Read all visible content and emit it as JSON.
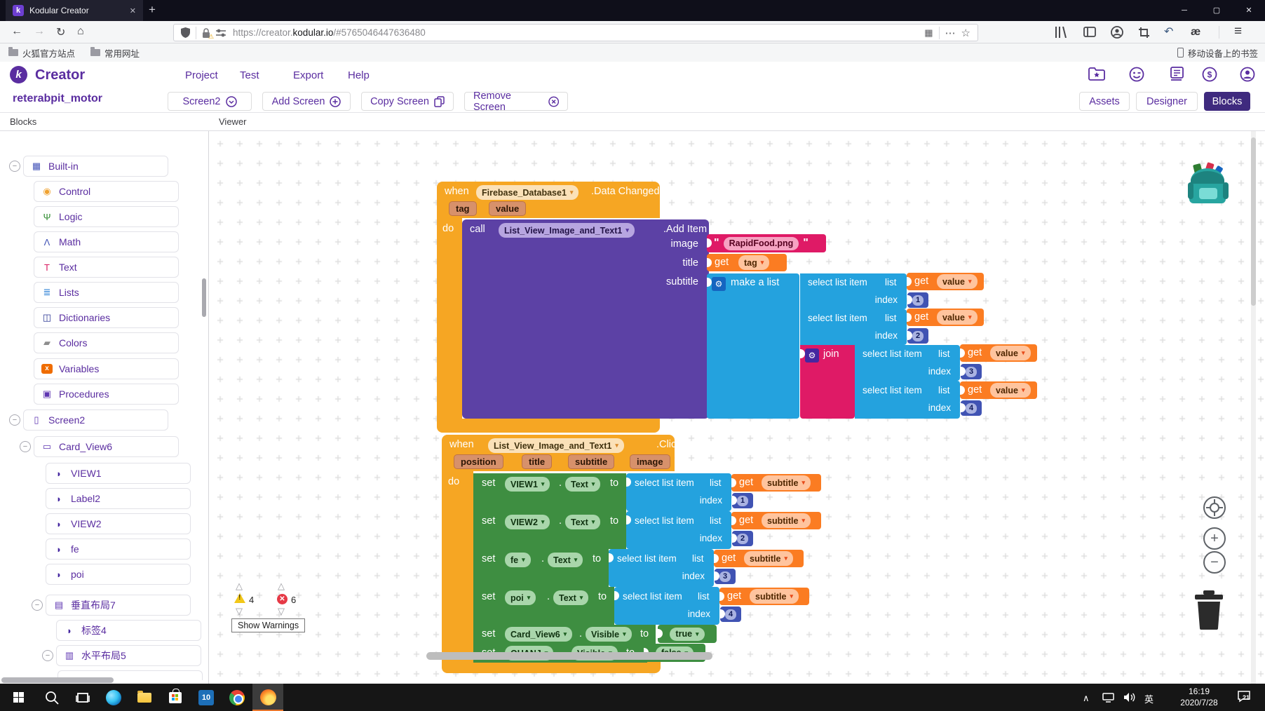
{
  "titlebar": {
    "tab_title": "Kodular Creator"
  },
  "browser": {
    "url_pre": "https://creator.",
    "url_domain": "kodular.io",
    "url_hash": "/#5765046447636480",
    "bookmarks": [
      {
        "label": "火狐官方站点"
      },
      {
        "label": "常用网址"
      }
    ],
    "bookmarks_right": "移动设备上的书签"
  },
  "icons": {
    "back": "←",
    "forward": "→",
    "reload": "↻",
    "home": "⌂",
    "qr": "▦",
    "overflow": "⋯",
    "star": "☆",
    "undo": "↶",
    "ae": "æ",
    "menu": "≡",
    "new_tab": "+",
    "tab_close": "✕",
    "win_min": "─",
    "win_max": "▢",
    "win_close": "✕",
    "gear": "⚙",
    "caret": "▾",
    "collapse_minus": "−",
    "tri_up": "△",
    "tri_down": "▽",
    "tray_chevron": "∧"
  },
  "header": {
    "brand": "Creator",
    "menus": [
      "Project",
      "Test",
      "Export",
      "Help"
    ]
  },
  "toolbar": {
    "project_name": "reterabpit_motor",
    "screen_btn": "Screen2",
    "add_btn": "Add Screen",
    "copy_btn": "Copy Screen",
    "remove_btn": "Remove Screen",
    "assets_btn": "Assets",
    "designer_btn": "Designer",
    "blocks_btn": "Blocks"
  },
  "panel": {
    "blocks_title": "Blocks",
    "viewer_title": "Viewer"
  },
  "sidebar": {
    "items": [
      {
        "label": "Built-in",
        "level": 0,
        "collapse": true,
        "glyph": "▦",
        "color": "#4353b8"
      },
      {
        "label": "Control",
        "level": 1,
        "collapse": false,
        "glyph": "◉",
        "color": "#f0a230"
      },
      {
        "label": "Logic",
        "level": 1,
        "collapse": false,
        "glyph": "Ψ",
        "color": "#2e8b2e"
      },
      {
        "label": "Math",
        "level": 1,
        "collapse": false,
        "glyph": "Λ",
        "color": "#3f51b5"
      },
      {
        "label": "Text",
        "level": 1,
        "collapse": false,
        "glyph": "T",
        "color": "#d81b60"
      },
      {
        "label": "Lists",
        "level": 1,
        "collapse": false,
        "glyph": "≣",
        "color": "#1976d2"
      },
      {
        "label": "Dictionaries",
        "level": 1,
        "collapse": false,
        "glyph": "◫",
        "color": "#283593"
      },
      {
        "label": "Colors",
        "level": 1,
        "collapse": false,
        "glyph": "▰",
        "color": "#8e8e8e"
      },
      {
        "label": "Variables",
        "level": 1,
        "collapse": false,
        "glyph": "x",
        "color": "#ef6c00",
        "boxed": true
      },
      {
        "label": "Procedures",
        "level": 1,
        "collapse": false,
        "glyph": "▣",
        "color": "#5e35b1"
      },
      {
        "label": "Screen2",
        "level": 0,
        "collapse": true,
        "glyph": "▯",
        "color": "#5e35b1"
      },
      {
        "label": "Card_View6",
        "level": 1,
        "collapse": true,
        "glyph": "▭",
        "color": "#5e35b1"
      },
      {
        "label": "VIEW1",
        "level": 2,
        "collapse": false,
        "glyph": "◗",
        "color": "#4527a0"
      },
      {
        "label": "Label2",
        "level": 2,
        "collapse": false,
        "glyph": "◗",
        "color": "#4527a0"
      },
      {
        "label": "VIEW2",
        "level": 2,
        "collapse": false,
        "glyph": "◗",
        "color": "#4527a0"
      },
      {
        "label": "fe",
        "level": 2,
        "collapse": false,
        "glyph": "◗",
        "color": "#4527a0"
      },
      {
        "label": "poi",
        "level": 2,
        "collapse": false,
        "glyph": "◗",
        "color": "#4527a0"
      },
      {
        "label": "垂直布局7",
        "level": 2,
        "collapse": true,
        "glyph": "▤",
        "color": "#5e35b1"
      },
      {
        "label": "标签4",
        "level": 3,
        "collapse": false,
        "glyph": "◗",
        "color": "#4527a0"
      },
      {
        "label": "水平布局5",
        "level": 3,
        "collapse": true,
        "glyph": "▥",
        "color": "#5e35b1"
      }
    ]
  },
  "viewer": {
    "kw": {
      "when": "when",
      "do": "do",
      "call": "call",
      "set": "set",
      "to": "to",
      "get": "get",
      "select": "select list item",
      "list": "list",
      "index": "index",
      "make_list": "make a list",
      "join": "join",
      "dot": "."
    },
    "b1": {
      "component": "Firebase_Database1",
      "event": ".Data Changed",
      "p1": "tag",
      "p2": "value",
      "call_component": "List_View_Image_and_Text1",
      "method": ".Add Item",
      "a_image": "image",
      "a_title": "title",
      "a_subtitle": "subtitle",
      "image_str": "RapidFood.png",
      "quote": "\"",
      "get_title": "tag",
      "get_value": "value",
      "i1": "1",
      "i2": "2",
      "i3": "3",
      "i4": "4"
    },
    "b2": {
      "component": "List_View_Image_and_Text1",
      "event": ".Click",
      "p1": "position",
      "p2": "title",
      "p3": "subtitle",
      "p4": "image",
      "rows": [
        {
          "target": "VIEW1",
          "prop": "Text",
          "var": "subtitle",
          "index": "1"
        },
        {
          "target": "VIEW2",
          "prop": "Text",
          "var": "subtitle",
          "index": "2"
        },
        {
          "target": "fe",
          "prop": "Text",
          "var": "subtitle",
          "index": "3"
        },
        {
          "target": "poi",
          "prop": "Text",
          "var": "subtitle",
          "index": "4"
        }
      ],
      "vrows": [
        {
          "target": "Card_View6",
          "prop": "Visible",
          "value": "true"
        },
        {
          "target": "QUANJ",
          "prop": "Visible",
          "value": "false"
        }
      ]
    },
    "warnings": {
      "warning_count": "4",
      "error_count": "6",
      "show_warnings": "Show Warnings"
    }
  },
  "taskbar": {
    "time": "16:19",
    "date": "2020/7/28",
    "ime": "英",
    "badge": "21"
  }
}
